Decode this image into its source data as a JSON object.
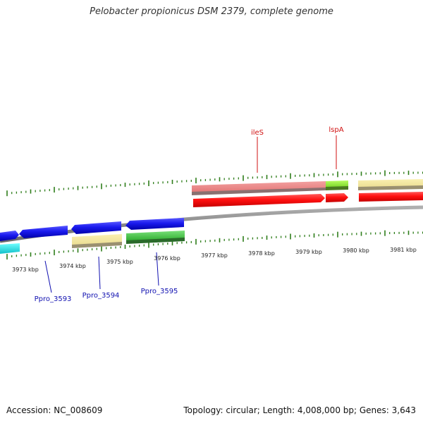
{
  "title": "Pelobacter propionicus DSM 2379, complete genome",
  "footer": {
    "accession": "Accession: NC_008609",
    "summary": "Topology: circular; Length: 4,008,000 bp; Genes: 3,643"
  },
  "colors": {
    "backbone": "#8a8a8a",
    "tick": "#2e7d1a",
    "red_label": "#d01010",
    "blue_label": "#1010b0"
  },
  "scale_labels": [
    "3973 kbp",
    "3974 kbp",
    "3975 kbp",
    "3976 kbp",
    "3977 kbp",
    "3978 kbp",
    "3979 kbp",
    "3980 kbp",
    "3981 kbp"
  ],
  "gene_labels": [
    {
      "name": "ileS",
      "color": "#d01010"
    },
    {
      "name": "lspA",
      "color": "#d01010"
    },
    {
      "name": "Ppro_3593",
      "color": "#1010b0"
    },
    {
      "name": "Ppro_3594",
      "color": "#1010b0"
    },
    {
      "name": "Ppro_3595",
      "color": "#1010b0"
    }
  ]
}
